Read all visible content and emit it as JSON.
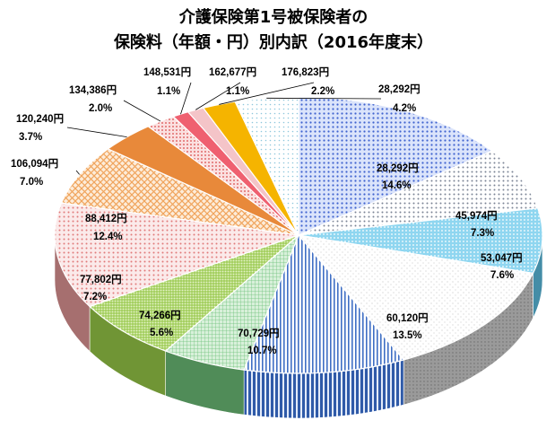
{
  "chart_data": {
    "type": "pie",
    "title_lines": [
      "介護保険第1号被保険者の",
      "保険料（年額・円）別内訳（2016年度末）"
    ],
    "slices": [
      {
        "amount": "28,292円",
        "percent": "14.6%",
        "value": 14.6,
        "color": "#4a6fd1",
        "pattern": "dots-blue"
      },
      {
        "amount": "45,974円",
        "percent": "7.3%",
        "value": 7.3,
        "color": "#9aa4b4",
        "pattern": "dots-gray"
      },
      {
        "amount": "53,047円",
        "percent": "7.6%",
        "value": 7.6,
        "color": "#5fc4e8",
        "pattern": "dots-cyan"
      },
      {
        "amount": "60,120円",
        "percent": "13.5%",
        "value": 13.5,
        "color": "#8c8c8c",
        "pattern": "speckle"
      },
      {
        "amount": "70,729円",
        "percent": "10.7%",
        "value": 10.7,
        "color": "#3f6fc4",
        "pattern": "vlines"
      },
      {
        "amount": "74,266円",
        "percent": "5.6%",
        "value": 5.6,
        "color": "#6fc27a",
        "pattern": "grid-green"
      },
      {
        "amount": "77,802円",
        "percent": "7.2%",
        "value": 7.2,
        "color": "#9ccf4a",
        "pattern": "plaid"
      },
      {
        "amount": "88,412円",
        "percent": "12.4%",
        "value": 12.4,
        "color": "#e79a9a",
        "pattern": "dots-pink"
      },
      {
        "amount": "106,094円",
        "percent": "7.0%",
        "value": 7.0,
        "color": "#f0a45c",
        "pattern": "crosshatch"
      },
      {
        "amount": "120,240円",
        "percent": "3.7%",
        "value": 3.7,
        "color": "#e8893a",
        "pattern": "solid-orange"
      },
      {
        "amount": "134,386円",
        "percent": "2.0%",
        "value": 2.0,
        "color": "#e98c8c",
        "pattern": "dots-red"
      },
      {
        "amount": "148,531円",
        "percent": "1.1%",
        "value": 1.1,
        "color": "#ef6070",
        "pattern": "solid-red"
      },
      {
        "amount": "162,677円",
        "percent": "1.1%",
        "value": 1.1,
        "color": "#f4c4c8",
        "pattern": "solid-pink"
      },
      {
        "amount": "176,823円",
        "percent": "2.2%",
        "value": 2.2,
        "color": "#f5b400",
        "pattern": "solid-gold"
      },
      {
        "amount": "28,292円",
        "percent": "4.2%",
        "value": 4.2,
        "color": "#bfe3ef",
        "pattern": "dots-light"
      }
    ]
  }
}
